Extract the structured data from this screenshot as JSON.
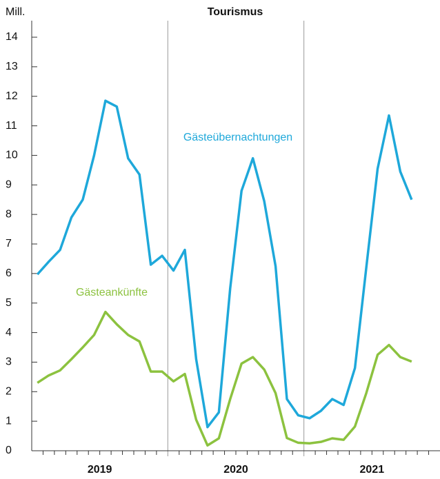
{
  "chart_data": {
    "type": "line",
    "title": "Tourismus",
    "y_label": "Mill.",
    "categories": [
      null,
      null,
      null,
      null,
      null,
      null,
      null,
      null,
      null,
      null,
      null,
      null,
      null,
      null,
      null,
      null,
      null,
      null,
      null,
      null,
      null,
      null,
      null,
      null,
      null,
      null,
      null,
      null,
      null,
      null,
      null,
      null,
      null,
      null,
      null,
      null
    ],
    "year_labels": [
      "2019",
      "2020",
      "2021"
    ],
    "series": [
      {
        "name": "Gästeübernachtungen",
        "color": "#1ea8da",
        "values": [
          5.97,
          6.4,
          6.8,
          7.9,
          8.5,
          10.0,
          11.85,
          11.65,
          9.9,
          9.35,
          6.3,
          6.6,
          6.1,
          6.8,
          3.1,
          0.8,
          1.3,
          5.5,
          8.8,
          9.9,
          8.45,
          6.25,
          1.75,
          1.2,
          1.1,
          1.35,
          1.75,
          1.55,
          2.8,
          6.2,
          9.55,
          11.35,
          9.45,
          8.5,
          null,
          null
        ]
      },
      {
        "name": "Gästeankünfte",
        "color": "#8cc23f",
        "values": [
          2.3,
          2.55,
          2.72,
          3.1,
          3.5,
          3.92,
          4.7,
          4.28,
          3.92,
          3.7,
          2.68,
          2.68,
          2.35,
          2.6,
          1.05,
          0.18,
          0.42,
          1.75,
          2.95,
          3.17,
          2.75,
          1.95,
          0.43,
          0.27,
          0.25,
          0.3,
          0.42,
          0.37,
          0.82,
          1.95,
          3.25,
          3.58,
          3.17,
          3.02,
          null,
          null
        ]
      }
    ],
    "ylim": [
      0,
      14
    ],
    "yticks": [
      0,
      1,
      2,
      3,
      4,
      5,
      6,
      7,
      8,
      9,
      10,
      11,
      12,
      13,
      14
    ],
    "grid": false
  }
}
